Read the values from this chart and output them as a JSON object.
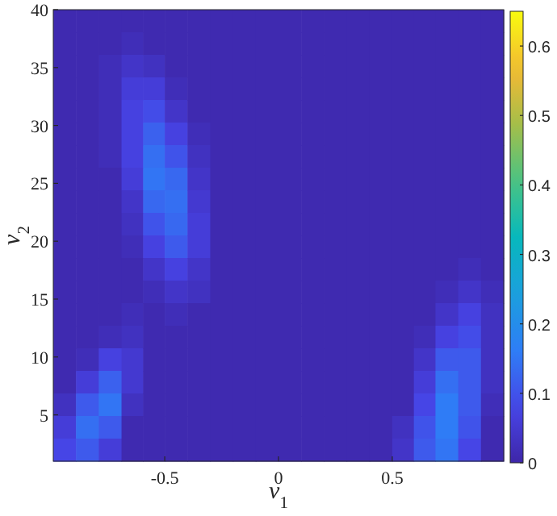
{
  "chart_data": {
    "type": "heatmap",
    "xlabel": "v$_{1}$",
    "ylabel": "v$_{2}$",
    "x": [
      -0.94,
      -0.84,
      -0.74,
      -0.64,
      -0.55,
      -0.45,
      -0.35,
      -0.25,
      -0.15,
      -0.05,
      0.05,
      0.15,
      0.25,
      0.35,
      0.45,
      0.55,
      0.64,
      0.74,
      0.84,
      0.94
    ],
    "y": [
      39.0,
      37.1,
      35.1,
      33.2,
      31.2,
      29.3,
      27.3,
      25.4,
      23.4,
      21.5,
      19.5,
      17.6,
      15.6,
      13.7,
      11.7,
      9.8,
      7.8,
      5.9,
      3.9,
      2.0
    ],
    "xlim": [
      -0.99,
      0.99
    ],
    "xticks": [
      -0.5,
      0,
      0.5
    ],
    "ylim": [
      1,
      40
    ],
    "yticks": [
      5,
      10,
      15,
      20,
      25,
      30,
      35,
      40
    ],
    "clim": [
      0,
      0.65
    ],
    "cticks": [
      0,
      0.1,
      0.2,
      0.3,
      0.4,
      0.5,
      0.6
    ],
    "cells": [
      [
        0.01,
        0.01,
        0.01,
        0.01,
        0.01,
        0.01,
        0.01,
        0.01,
        0.01,
        0.01,
        0.01,
        0.01,
        0.01,
        0.01,
        0.01,
        0.01,
        0.01,
        0.01,
        0.01,
        0.01
      ],
      [
        0.01,
        0.01,
        0.01,
        0.02,
        0.01,
        0.01,
        0.01,
        0.01,
        0.01,
        0.01,
        0.01,
        0.01,
        0.01,
        0.01,
        0.01,
        0.01,
        0.01,
        0.01,
        0.01,
        0.01
      ],
      [
        0.01,
        0.01,
        0.02,
        0.04,
        0.03,
        0.01,
        0.01,
        0.01,
        0.01,
        0.01,
        0.01,
        0.01,
        0.01,
        0.01,
        0.01,
        0.01,
        0.01,
        0.01,
        0.01,
        0.01
      ],
      [
        0.01,
        0.01,
        0.02,
        0.06,
        0.06,
        0.02,
        0.01,
        0.01,
        0.01,
        0.01,
        0.01,
        0.01,
        0.01,
        0.01,
        0.01,
        0.01,
        0.01,
        0.01,
        0.01,
        0.01
      ],
      [
        0.01,
        0.01,
        0.02,
        0.07,
        0.09,
        0.04,
        0.01,
        0.01,
        0.01,
        0.01,
        0.01,
        0.01,
        0.01,
        0.01,
        0.01,
        0.01,
        0.01,
        0.01,
        0.01,
        0.01
      ],
      [
        0.01,
        0.01,
        0.02,
        0.07,
        0.12,
        0.07,
        0.02,
        0.01,
        0.01,
        0.01,
        0.01,
        0.01,
        0.01,
        0.01,
        0.01,
        0.01,
        0.01,
        0.01,
        0.01,
        0.01
      ],
      [
        0.01,
        0.01,
        0.02,
        0.07,
        0.14,
        0.1,
        0.03,
        0.01,
        0.01,
        0.01,
        0.01,
        0.01,
        0.01,
        0.01,
        0.01,
        0.01,
        0.01,
        0.01,
        0.01,
        0.01
      ],
      [
        0.01,
        0.01,
        0.01,
        0.06,
        0.15,
        0.13,
        0.04,
        0.01,
        0.01,
        0.01,
        0.01,
        0.01,
        0.01,
        0.01,
        0.01,
        0.01,
        0.01,
        0.01,
        0.01,
        0.01
      ],
      [
        0.01,
        0.01,
        0.01,
        0.04,
        0.13,
        0.14,
        0.05,
        0.01,
        0.01,
        0.01,
        0.01,
        0.01,
        0.01,
        0.01,
        0.01,
        0.01,
        0.01,
        0.01,
        0.01,
        0.01
      ],
      [
        0.01,
        0.01,
        0.01,
        0.03,
        0.1,
        0.13,
        0.06,
        0.01,
        0.01,
        0.01,
        0.01,
        0.01,
        0.01,
        0.01,
        0.01,
        0.01,
        0.01,
        0.01,
        0.01,
        0.01
      ],
      [
        0.01,
        0.01,
        0.01,
        0.02,
        0.07,
        0.11,
        0.06,
        0.01,
        0.01,
        0.01,
        0.01,
        0.01,
        0.01,
        0.01,
        0.01,
        0.01,
        0.01,
        0.01,
        0.01,
        0.01
      ],
      [
        0.01,
        0.01,
        0.01,
        0.01,
        0.04,
        0.07,
        0.04,
        0.01,
        0.01,
        0.01,
        0.01,
        0.01,
        0.01,
        0.01,
        0.01,
        0.01,
        0.01,
        0.01,
        0.02,
        0.01
      ],
      [
        0.01,
        0.01,
        0.01,
        0.01,
        0.02,
        0.04,
        0.03,
        0.01,
        0.01,
        0.01,
        0.01,
        0.01,
        0.01,
        0.01,
        0.01,
        0.01,
        0.01,
        0.02,
        0.04,
        0.02
      ],
      [
        0.01,
        0.01,
        0.01,
        0.02,
        0.01,
        0.02,
        0.01,
        0.01,
        0.01,
        0.01,
        0.01,
        0.01,
        0.01,
        0.01,
        0.01,
        0.01,
        0.01,
        0.04,
        0.07,
        0.03
      ],
      [
        0.01,
        0.01,
        0.02,
        0.03,
        0.01,
        0.01,
        0.01,
        0.01,
        0.01,
        0.01,
        0.01,
        0.01,
        0.01,
        0.01,
        0.01,
        0.01,
        0.02,
        0.07,
        0.09,
        0.03
      ],
      [
        0.01,
        0.02,
        0.07,
        0.05,
        0.01,
        0.01,
        0.01,
        0.01,
        0.01,
        0.01,
        0.01,
        0.01,
        0.01,
        0.01,
        0.01,
        0.01,
        0.04,
        0.11,
        0.11,
        0.03
      ],
      [
        0.01,
        0.06,
        0.12,
        0.05,
        0.01,
        0.01,
        0.01,
        0.01,
        0.01,
        0.01,
        0.01,
        0.01,
        0.01,
        0.01,
        0.01,
        0.01,
        0.06,
        0.14,
        0.11,
        0.03
      ],
      [
        0.03,
        0.11,
        0.15,
        0.03,
        0.01,
        0.01,
        0.01,
        0.01,
        0.01,
        0.01,
        0.01,
        0.01,
        0.01,
        0.01,
        0.01,
        0.01,
        0.08,
        0.16,
        0.11,
        0.02
      ],
      [
        0.06,
        0.14,
        0.11,
        0.01,
        0.01,
        0.01,
        0.01,
        0.01,
        0.01,
        0.01,
        0.01,
        0.01,
        0.01,
        0.01,
        0.01,
        0.03,
        0.1,
        0.16,
        0.1,
        0.01
      ],
      [
        0.08,
        0.11,
        0.06,
        0.01,
        0.01,
        0.01,
        0.01,
        0.01,
        0.01,
        0.01,
        0.01,
        0.01,
        0.01,
        0.01,
        0.01,
        0.04,
        0.11,
        0.15,
        0.08,
        0.01
      ]
    ]
  }
}
